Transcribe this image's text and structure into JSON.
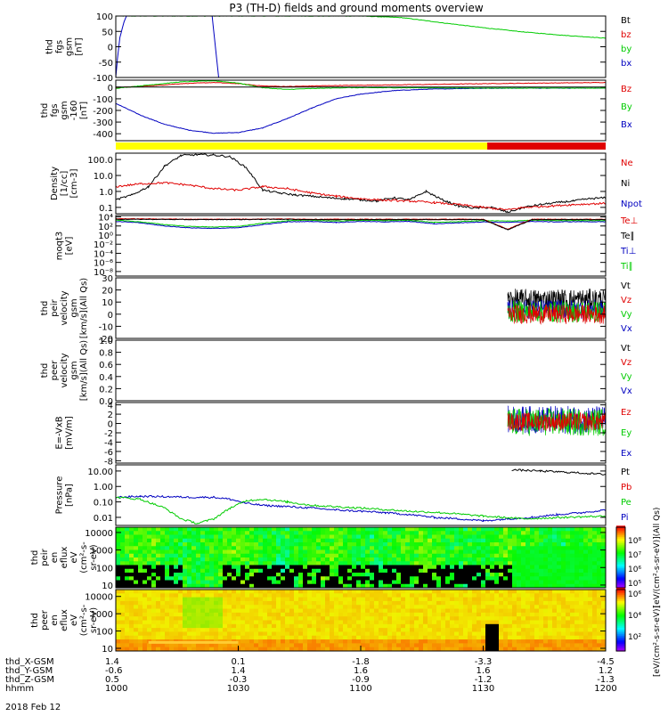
{
  "title": "P3 (TH-D) fields and ground moments overview",
  "date_label": "2018 Feb 12",
  "colors": {
    "black": "#000000",
    "red": "#e00000",
    "green": "#00cc00",
    "blue": "#0000c0",
    "yellow": "#ffff00",
    "spec_red": "#ff2000",
    "frame": "#000000"
  },
  "chart_data": [
    {
      "id": "fgs_gsm_zoom",
      "type": "line",
      "ylabel": [
        "thd",
        "fgs",
        "gsm",
        "[nT]"
      ],
      "ylim": [
        -100,
        100
      ],
      "ytick_labels": [
        "100",
        "50",
        "0",
        "-50",
        "-100"
      ],
      "legend": [
        {
          "label": "Bt",
          "color": "black"
        },
        {
          "label": "bz",
          "color": "red"
        },
        {
          "label": "by",
          "color": "green"
        },
        {
          "label": "bx",
          "color": "blue"
        }
      ],
      "series": [
        {
          "color": "green",
          "x": [
            0,
            5,
            10,
            18,
            25,
            30,
            35,
            40,
            45,
            50,
            55,
            60
          ],
          "y": [
            100,
            100,
            100,
            100,
            100,
            100,
            95,
            78,
            62,
            48,
            37,
            28
          ]
        },
        {
          "color": "blue",
          "x": [
            0,
            0.2,
            0.5,
            1.0,
            1.3
          ],
          "y": [
            -100,
            -40,
            30,
            80,
            100
          ]
        },
        {
          "color": "blue",
          "x": [
            11.8,
            12.2,
            12.6
          ],
          "y": [
            100,
            0,
            -100
          ]
        }
      ]
    },
    {
      "id": "fgs_gsm",
      "type": "line",
      "ylabel": [
        "thd",
        "fgs",
        "gsm",
        "-160",
        "[nT]"
      ],
      "ylim": [
        -460,
        60
      ],
      "ytick_labels": [
        "0",
        "-100",
        "-200",
        "-300",
        "-400"
      ],
      "legend": [
        {
          "label": "Bz",
          "color": "red"
        },
        {
          "label": "By",
          "color": "green"
        },
        {
          "label": "Bx",
          "color": "blue"
        }
      ],
      "series": [
        {
          "color": "blue",
          "x": [
            0,
            3,
            6,
            9,
            12,
            15,
            18,
            21,
            24,
            27,
            30,
            34,
            38,
            42,
            46,
            50,
            55,
            60
          ],
          "y": [
            -140,
            -240,
            -320,
            -370,
            -395,
            -390,
            -350,
            -270,
            -180,
            -100,
            -60,
            -30,
            -18,
            -12,
            -10,
            -8,
            -8,
            -8
          ]
        },
        {
          "color": "red",
          "x": [
            0,
            5,
            8,
            12,
            15,
            18,
            21,
            24,
            28,
            35,
            45,
            60
          ],
          "y": [
            -5,
            15,
            30,
            40,
            30,
            10,
            5,
            10,
            15,
            20,
            30,
            40
          ]
        },
        {
          "color": "green",
          "x": [
            0,
            5,
            8,
            12,
            15,
            18,
            21,
            24,
            28,
            35,
            45,
            60
          ],
          "y": [
            -10,
            25,
            45,
            55,
            35,
            -5,
            -20,
            -12,
            -5,
            -5,
            -8,
            -8
          ]
        },
        {
          "color": "black",
          "x": [
            0,
            60
          ],
          "y": [
            0,
            0
          ]
        }
      ]
    },
    {
      "id": "mode_bar",
      "type": "bar",
      "segments": [
        {
          "x0": 0,
          "x1": 45.5,
          "color": "yellow"
        },
        {
          "x0": 45.5,
          "x1": 60,
          "color": "red"
        }
      ]
    },
    {
      "id": "density",
      "type": "line",
      "yscale": "log",
      "ylabel": [
        "Density",
        "[1/cc]",
        "[cm-3]"
      ],
      "ylim": [
        0.04,
        250
      ],
      "ytick_labels": [
        "100.0",
        "10.0",
        "1.0",
        "0.1"
      ],
      "legend": [
        {
          "label": "Ne",
          "color": "red"
        },
        {
          "label": "Ni",
          "color": "black"
        },
        {
          "label": "Npot",
          "color": "blue"
        }
      ],
      "series": [
        {
          "color": "black",
          "x": [
            0,
            2,
            4,
            6,
            8,
            10,
            12,
            14,
            16,
            18,
            20,
            22,
            24,
            26,
            28,
            30,
            32,
            34,
            36,
            38,
            40,
            42,
            44,
            46,
            48,
            50,
            52,
            54,
            56,
            58,
            60
          ],
          "y": [
            0.3,
            0.6,
            2,
            40,
            180,
            200,
            190,
            150,
            30,
            1.2,
            0.8,
            0.6,
            0.5,
            0.4,
            0.35,
            0.3,
            0.25,
            0.4,
            0.3,
            1.0,
            0.3,
            0.12,
            0.09,
            0.1,
            0.05,
            0.1,
            0.15,
            0.2,
            0.25,
            0.35,
            0.4
          ]
        },
        {
          "color": "red",
          "x": [
            0,
            3,
            6,
            9,
            12,
            15,
            18,
            21,
            24,
            27,
            30,
            33,
            36,
            39,
            42,
            45,
            48,
            50,
            53,
            56,
            60
          ],
          "y": [
            2.0,
            3.0,
            3.5,
            2.5,
            1.5,
            1.2,
            2.0,
            1.5,
            0.8,
            0.5,
            0.35,
            0.28,
            0.25,
            0.2,
            0.15,
            0.1,
            0.07,
            0.1,
            0.12,
            0.15,
            0.18
          ]
        }
      ]
    },
    {
      "id": "moqt3",
      "type": "line",
      "yscale": "log",
      "ylabel": [
        "moqt3",
        "[eV]"
      ],
      "ylim": [
        1e-09,
        20000
      ],
      "ytick_labels": [
        "10⁴",
        "10²",
        "10⁰",
        "10⁻²",
        "10⁻⁴",
        "10⁻⁶",
        "10⁻⁸"
      ],
      "legend": [
        {
          "label": "Te⊥",
          "color": "red"
        },
        {
          "label": "Te∥",
          "color": "black"
        },
        {
          "label": "Ti⊥",
          "color": "blue"
        },
        {
          "label": "Ti∥",
          "color": "green"
        }
      ],
      "series": [
        {
          "color": "blue",
          "x": [
            0,
            3,
            6,
            9,
            12,
            15,
            18,
            21,
            24,
            27,
            30,
            33,
            36,
            39,
            42,
            45,
            48,
            51,
            54,
            57,
            60
          ],
          "y": [
            1000,
            500,
            100,
            40,
            30,
            40,
            200,
            800,
            1000,
            600,
            1000,
            800,
            1000,
            300,
            500,
            800,
            600,
            1000,
            800,
            900,
            800
          ]
        },
        {
          "color": "green",
          "x": [
            0,
            3,
            6,
            9,
            12,
            15,
            18,
            21,
            24,
            27,
            30,
            33,
            36,
            39,
            42,
            45,
            48,
            51,
            54,
            57,
            60
          ],
          "y": [
            2000,
            800,
            200,
            80,
            60,
            80,
            400,
            1500,
            1800,
            1200,
            1800,
            1500,
            1800,
            600,
            900,
            1500,
            1200,
            1800,
            1500,
            1600,
            1500
          ]
        },
        {
          "color": "red",
          "x": [
            0,
            5,
            10,
            15,
            20,
            25,
            30,
            35,
            40,
            45,
            48,
            51,
            55,
            60
          ],
          "y": [
            4000,
            3500,
            3000,
            3200,
            3500,
            3000,
            3000,
            3000,
            3000,
            3000,
            20,
            3000,
            3000,
            3000
          ]
        },
        {
          "color": "black",
          "x": [
            0,
            5,
            10,
            15,
            20,
            25,
            30,
            35,
            40,
            45,
            48,
            51,
            55,
            60
          ],
          "y": [
            3000,
            2800,
            2500,
            2600,
            3000,
            2500,
            2500,
            2500,
            2500,
            2500,
            15,
            2500,
            2500,
            2500
          ]
        }
      ]
    },
    {
      "id": "peir_velocity",
      "type": "line",
      "ylabel": [
        "thd",
        "peir",
        "velocity",
        "gsm",
        "[km/s](All Qs)"
      ],
      "ylim": [
        -20,
        30
      ],
      "ytick_labels": [
        "30",
        "20",
        "10",
        "0",
        "-10",
        "-20"
      ],
      "legend": [
        {
          "label": "Vt",
          "color": "black"
        },
        {
          "label": "Vz",
          "color": "red"
        },
        {
          "label": "Vy",
          "color": "green"
        },
        {
          "label": "Vx",
          "color": "blue"
        }
      ],
      "noise_block": {
        "x0": 48.0,
        "x1": 60,
        "traces": [
          {
            "color": "black",
            "center": 12,
            "amp": 9
          },
          {
            "color": "blue",
            "center": 4,
            "amp": 8
          },
          {
            "color": "green",
            "center": 2,
            "amp": 9
          },
          {
            "color": "red",
            "center": 0,
            "amp": 8
          }
        ]
      }
    },
    {
      "id": "peer_velocity",
      "type": "line",
      "ylabel": [
        "thd",
        "peer",
        "velocity",
        "gsm",
        "[km/s](All Qs)"
      ],
      "ylim": [
        0,
        1
      ],
      "ytick_labels": [
        "1.0",
        "0.8",
        "0.6",
        "0.4",
        "0.2",
        "0.0"
      ],
      "legend": [
        {
          "label": "Vt",
          "color": "black"
        },
        {
          "label": "Vz",
          "color": "red"
        },
        {
          "label": "Vy",
          "color": "green"
        },
        {
          "label": "Vx",
          "color": "blue"
        }
      ]
    },
    {
      "id": "e_vxb",
      "type": "line",
      "ylabel": [
        "E=-VxB",
        "[mV/m]"
      ],
      "ylim": [
        -8.5,
        4.5
      ],
      "ytick_labels": [
        "4",
        "2",
        "0",
        "-2",
        "-4",
        "-6",
        "-8"
      ],
      "legend": [
        {
          "label": "Ez",
          "color": "red"
        },
        {
          "label": "Ey",
          "color": "green"
        },
        {
          "label": "Ex",
          "color": "blue"
        }
      ],
      "noise_block": {
        "x0": 48.0,
        "x1": 60,
        "traces": [
          {
            "color": "blue",
            "center": 0.8,
            "amp": 3
          },
          {
            "color": "green",
            "center": 0.3,
            "amp": 3
          },
          {
            "color": "red",
            "center": 0.4,
            "amp": 2
          }
        ]
      }
    },
    {
      "id": "pressure",
      "type": "line",
      "yscale": "log",
      "ylabel": [
        "Pressure",
        "[nPa]"
      ],
      "ylim": [
        0.003,
        25
      ],
      "ytick_labels": [
        "10.00",
        "1.00",
        "0.10",
        "0.01"
      ],
      "legend": [
        {
          "label": "Pt",
          "color": "black"
        },
        {
          "label": "Pb",
          "color": "red"
        },
        {
          "label": "Pe",
          "color": "green"
        },
        {
          "label": "Pi",
          "color": "blue"
        }
      ],
      "series": [
        {
          "color": "blue",
          "x": [
            0,
            3,
            6,
            9,
            12,
            14,
            16,
            18,
            21,
            24,
            27,
            30,
            33,
            36,
            39,
            42,
            45,
            48,
            51,
            54,
            57,
            60
          ],
          "y": [
            0.2,
            0.23,
            0.22,
            0.2,
            0.2,
            0.15,
            0.08,
            0.06,
            0.05,
            0.04,
            0.03,
            0.025,
            0.02,
            0.015,
            0.01,
            0.008,
            0.006,
            0.008,
            0.01,
            0.015,
            0.02,
            0.03
          ]
        },
        {
          "color": "green",
          "x": [
            0,
            3,
            6,
            8,
            10,
            12,
            14,
            16,
            18,
            21,
            24,
            30,
            36,
            40,
            45,
            50,
            55,
            60
          ],
          "y": [
            0.2,
            0.15,
            0.04,
            0.008,
            0.004,
            0.008,
            0.04,
            0.12,
            0.15,
            0.1,
            0.06,
            0.04,
            0.025,
            0.02,
            0.012,
            0.008,
            0.01,
            0.012
          ]
        },
        {
          "color": "black",
          "x": [
            48.5,
            52,
            56,
            60
          ],
          "y": [
            12,
            10,
            8,
            6
          ]
        }
      ]
    },
    {
      "id": "peir_en_eflux",
      "type": "heatmap",
      "ylabel": [
        "thd",
        "peir",
        "en",
        "eflux",
        "eV",
        "(cm²-s-",
        "sr-eV)"
      ],
      "ylim": [
        7,
        20000
      ],
      "yscale": "log",
      "ytick_labels": [
        "10000",
        "1000",
        "100",
        "10"
      ]
    },
    {
      "id": "peer_en_eflux",
      "type": "heatmap",
      "ylabel": [
        "thd",
        "peer",
        "en",
        "eflux",
        "eV",
        "(cm²-s-",
        "sr-eV)"
      ],
      "ylim": [
        7,
        25000
      ],
      "yscale": "log",
      "ytick_labels": [
        "10000",
        "1000",
        "100",
        "10"
      ]
    }
  ],
  "colorbar": {
    "upper_ticks": [
      "10⁸",
      "10⁷",
      "10⁶",
      "10⁵"
    ],
    "lower_ticks": [
      "10⁶",
      "10⁴",
      "10²"
    ],
    "label": "[eV/(cm²-s-sr-eV)]",
    "upper_label": "[eV/(cm²-s-sr-eV)](All Qs)"
  },
  "x_axis": {
    "range_minutes": [
      0,
      60
    ],
    "tick_minutes": [
      0,
      15,
      30,
      45,
      60
    ],
    "rows": [
      {
        "label": "thd_X-GSM",
        "values": [
          "1.4",
          "0.1",
          "-1.8",
          "-3.3",
          "-4.5"
        ]
      },
      {
        "label": "thd_Y-GSM",
        "values": [
          "-0.6",
          "1.4",
          "1.6",
          "1.6",
          "1.2"
        ]
      },
      {
        "label": "thd_Z-GSM",
        "values": [
          "0.5",
          "-0.3",
          "-0.9",
          "-1.2",
          "-1.3"
        ]
      },
      {
        "label": "hhmm",
        "values": [
          "1000",
          "1030",
          "1100",
          "1130",
          "1200"
        ]
      }
    ]
  }
}
